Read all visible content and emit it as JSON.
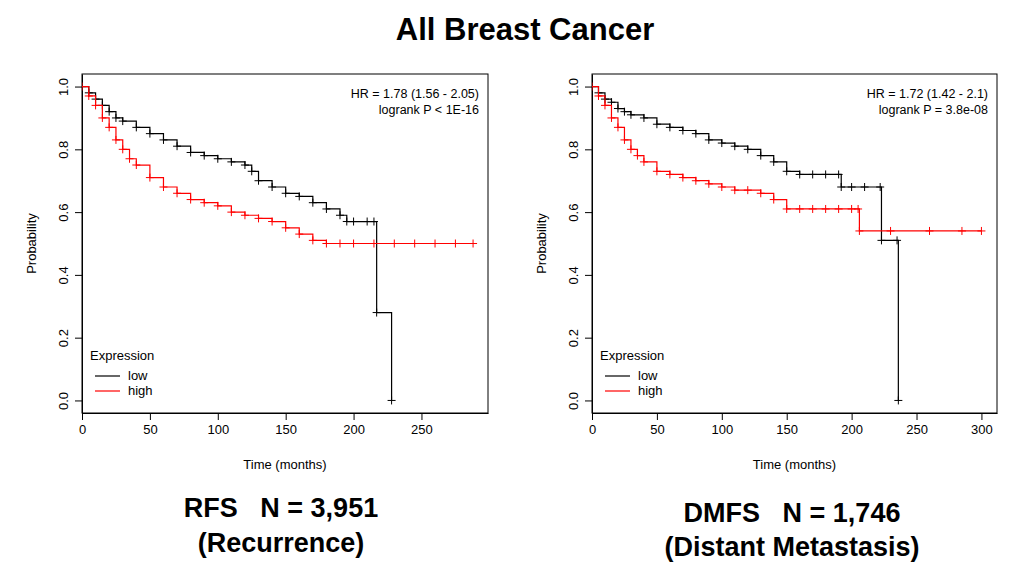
{
  "title": "All Breast Cancer",
  "chart_data": [
    {
      "type": "line",
      "title": "RFS   N = 3,951",
      "subtitle": "(Recurrence)",
      "x_label": "Time (months)",
      "y_label": "Probability",
      "annotations": [
        "HR = 1.78 (1.56 - 2.05)",
        "logrank P < 1E-16"
      ],
      "legend_title": "Expression",
      "legend": "bottom-left",
      "line_style": "step",
      "marker": "plus",
      "xlim": [
        0,
        299
      ],
      "xticks": [
        0,
        50,
        100,
        150,
        200,
        250
      ],
      "ylim": [
        -0.04,
        1.04
      ],
      "yticks": [
        {
          "value": 0,
          "label": "0.0"
        },
        0.2,
        0.4,
        0.6,
        0.8,
        {
          "value": 1,
          "label": "1.0"
        }
      ],
      "series": [
        {
          "name": "low",
          "color": "#000000",
          "x": [
            0,
            5,
            10,
            15,
            20,
            25,
            30,
            40,
            50,
            60,
            70,
            80,
            90,
            100,
            110,
            120,
            125,
            130,
            140,
            150,
            160,
            170,
            180,
            190,
            195,
            200,
            210,
            215,
            217,
            228
          ],
          "values": [
            1.0,
            0.98,
            0.96,
            0.94,
            0.92,
            0.9,
            0.89,
            0.87,
            0.85,
            0.83,
            0.81,
            0.79,
            0.78,
            0.77,
            0.76,
            0.75,
            0.73,
            0.7,
            0.68,
            0.66,
            0.65,
            0.63,
            0.61,
            0.59,
            0.57,
            0.57,
            0.57,
            0.57,
            0.28,
            0.0
          ]
        },
        {
          "name": "high",
          "color": "#ff0000",
          "x": [
            0,
            5,
            10,
            15,
            20,
            25,
            30,
            35,
            40,
            50,
            60,
            70,
            80,
            90,
            100,
            110,
            120,
            130,
            140,
            150,
            160,
            170,
            180,
            190,
            200,
            215,
            230,
            245,
            260,
            275,
            288
          ],
          "values": [
            1.0,
            0.97,
            0.94,
            0.9,
            0.87,
            0.83,
            0.8,
            0.77,
            0.75,
            0.71,
            0.68,
            0.66,
            0.64,
            0.63,
            0.62,
            0.6,
            0.59,
            0.58,
            0.57,
            0.55,
            0.53,
            0.51,
            0.5,
            0.5,
            0.5,
            0.5,
            0.5,
            0.5,
            0.5,
            0.5,
            0.5
          ]
        }
      ]
    },
    {
      "type": "line",
      "title": "DMFS   N = 1,746",
      "subtitle": "(Distant Metastasis)",
      "x_label": "Time (months)",
      "y_label": "Probability",
      "annotations": [
        "HR = 1.72 (1.42 - 2.1)",
        "logrank P = 3.8e-08"
      ],
      "legend_title": "Expression",
      "legend": "bottom-left",
      "line_style": "step",
      "marker": "plus",
      "xlim": [
        0,
        312
      ],
      "xticks": [
        0,
        50,
        100,
        150,
        200,
        250,
        300
      ],
      "ylim": [
        -0.04,
        1.04
      ],
      "yticks": [
        {
          "value": 0,
          "label": "0.0"
        },
        0.2,
        0.4,
        0.6,
        0.8,
        {
          "value": 1,
          "label": "1.0"
        }
      ],
      "series": [
        {
          "name": "low",
          "color": "#000000",
          "x": [
            0,
            5,
            10,
            15,
            20,
            25,
            30,
            40,
            50,
            60,
            70,
            80,
            90,
            100,
            110,
            120,
            130,
            140,
            150,
            160,
            170,
            180,
            190,
            192,
            200,
            210,
            222,
            223,
            235,
            236
          ],
          "values": [
            1.0,
            0.98,
            0.96,
            0.95,
            0.93,
            0.92,
            0.91,
            0.9,
            0.88,
            0.87,
            0.86,
            0.85,
            0.83,
            0.82,
            0.81,
            0.8,
            0.78,
            0.76,
            0.73,
            0.72,
            0.72,
            0.72,
            0.72,
            0.68,
            0.68,
            0.68,
            0.68,
            0.51,
            0.51,
            0.0
          ]
        },
        {
          "name": "high",
          "color": "#ff0000",
          "x": [
            0,
            5,
            10,
            15,
            20,
            25,
            30,
            35,
            40,
            50,
            60,
            70,
            80,
            90,
            100,
            110,
            120,
            130,
            140,
            150,
            160,
            170,
            180,
            190,
            200,
            205,
            206,
            230,
            260,
            285,
            300
          ],
          "values": [
            1.0,
            0.97,
            0.94,
            0.9,
            0.87,
            0.83,
            0.8,
            0.78,
            0.76,
            0.73,
            0.72,
            0.71,
            0.7,
            0.69,
            0.68,
            0.67,
            0.67,
            0.66,
            0.64,
            0.61,
            0.61,
            0.61,
            0.61,
            0.61,
            0.61,
            0.61,
            0.54,
            0.54,
            0.54,
            0.54,
            0.54
          ]
        }
      ]
    }
  ]
}
